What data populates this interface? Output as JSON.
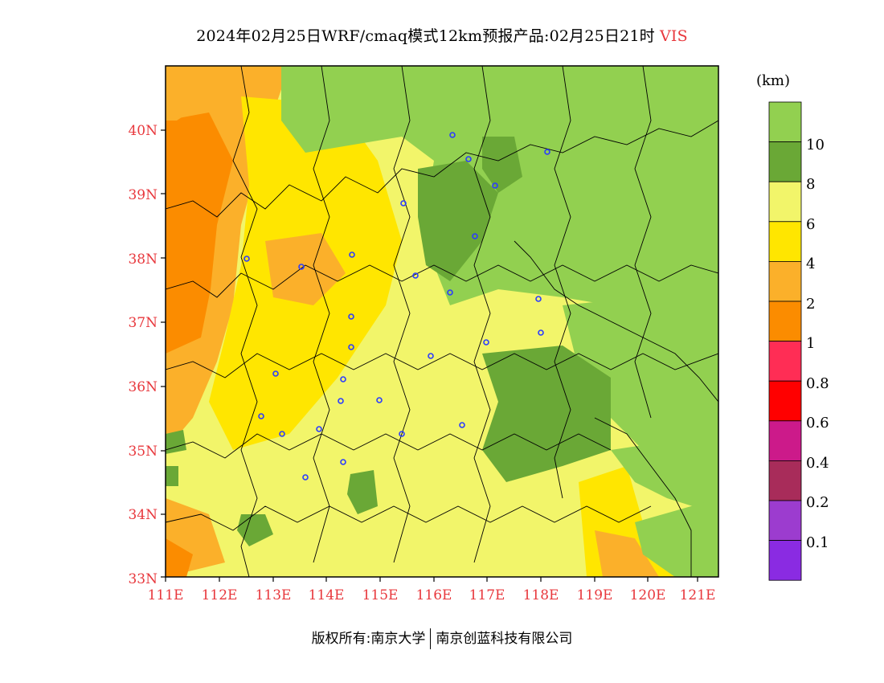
{
  "title": {
    "main": "2024年02月25日WRF/cmaq模式12km预报产品:02月25日21时",
    "variable": "VIS"
  },
  "map": {
    "lat_labels": [
      "40N",
      "39N",
      "38N",
      "37N",
      "36N",
      "35N",
      "34N",
      "33N"
    ],
    "lon_labels": [
      "111E",
      "112E",
      "113E",
      "114E",
      "115E",
      "116E",
      "117E",
      "118E",
      "119E",
      "120E",
      "121E"
    ],
    "axis_label_color": "#e8383d"
  },
  "legend": {
    "unit": "(km)",
    "labels": [
      "10",
      "8",
      "6",
      "4",
      "2",
      "1",
      "0.8",
      "0.6",
      "0.4",
      "0.2",
      "0.1"
    ],
    "colors": [
      "#92d050",
      "#6aa836",
      "#f2f56a",
      "#ffe600",
      "#fbb02a",
      "#fb8c00",
      "#ff2d55",
      "#ff0000",
      "#cc1a8a",
      "#a82c5a",
      "#9c3ccf",
      "#8a2be2"
    ]
  },
  "footer": {
    "left": "版权所有:南京大学",
    "right": "南京创蓝科技有限公司"
  }
}
